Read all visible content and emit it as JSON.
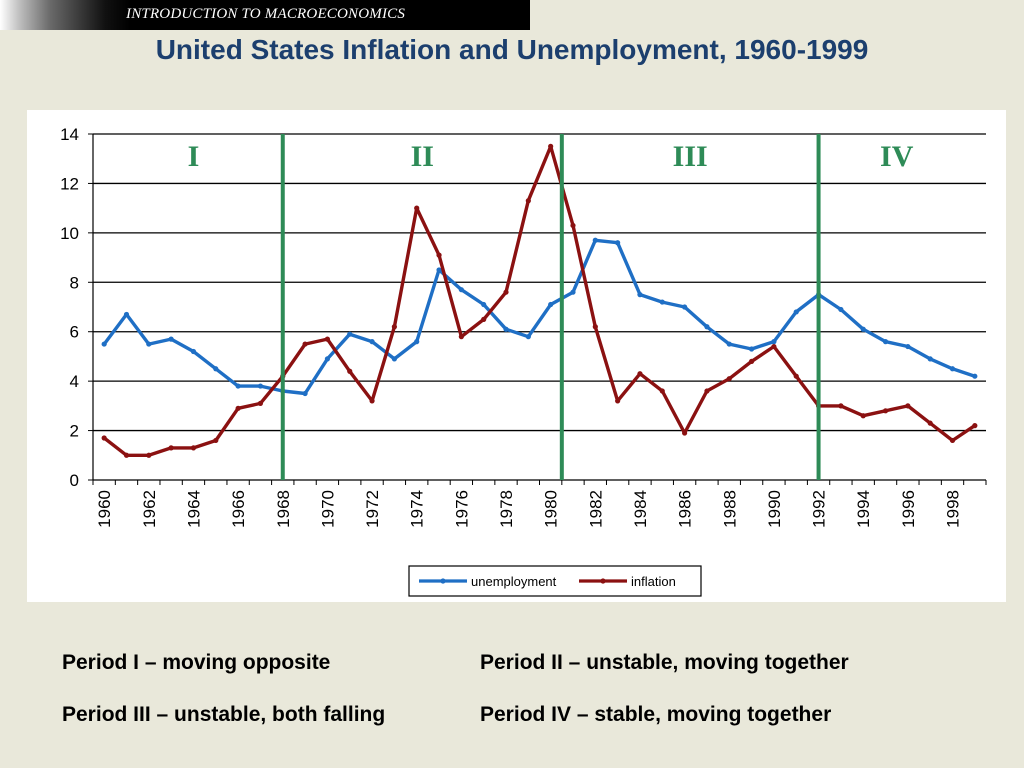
{
  "header": {
    "course_title": "INTRODUCTION TO MACROECONOMICS"
  },
  "slide_title": "United States Inflation and Unemployment, 1960-1999",
  "captions": [
    "Period I – moving opposite",
    "Period II – unstable, moving together",
    "Period III – unstable, both falling",
    "Period IV – stable, moving together"
  ],
  "chart_data": {
    "type": "line",
    "title": "",
    "xlabel": "",
    "ylabel": "",
    "x": [
      1960,
      1961,
      1962,
      1963,
      1964,
      1965,
      1966,
      1967,
      1968,
      1969,
      1970,
      1971,
      1972,
      1973,
      1974,
      1975,
      1976,
      1977,
      1978,
      1979,
      1980,
      1981,
      1982,
      1983,
      1984,
      1985,
      1986,
      1987,
      1988,
      1989,
      1990,
      1991,
      1992,
      1993,
      1994,
      1995,
      1996,
      1997,
      1998,
      1999
    ],
    "x_tick_labels": [
      "1960",
      "1962",
      "1964",
      "1966",
      "1968",
      "1970",
      "1972",
      "1974",
      "1976",
      "1978",
      "1980",
      "1982",
      "1984",
      "1986",
      "1988",
      "1990",
      "1992",
      "1994",
      "1996",
      "1998"
    ],
    "ylim": [
      0,
      14
    ],
    "y_ticks": [
      0,
      2,
      4,
      6,
      8,
      10,
      12,
      14
    ],
    "grid": "horizontal",
    "legend_position": "bottom",
    "series": [
      {
        "name": "unemployment",
        "color": "#1f6fc5",
        "values": [
          5.5,
          6.7,
          5.5,
          5.7,
          5.2,
          4.5,
          3.8,
          3.8,
          3.6,
          3.5,
          4.9,
          5.9,
          5.6,
          4.9,
          5.6,
          8.5,
          7.7,
          7.1,
          6.1,
          5.8,
          7.1,
          7.6,
          9.7,
          9.6,
          7.5,
          7.2,
          7.0,
          6.2,
          5.5,
          5.3,
          5.6,
          6.8,
          7.5,
          6.9,
          6.1,
          5.6,
          5.4,
          4.9,
          4.5,
          4.2
        ]
      },
      {
        "name": "inflation",
        "color": "#8b1111",
        "values": [
          1.7,
          1.0,
          1.0,
          1.3,
          1.3,
          1.6,
          2.9,
          3.1,
          4.2,
          5.5,
          5.7,
          4.4,
          3.2,
          6.2,
          11.0,
          9.1,
          5.8,
          6.5,
          7.6,
          11.3,
          13.5,
          10.3,
          6.2,
          3.2,
          4.3,
          3.6,
          1.9,
          3.6,
          4.1,
          4.8,
          5.4,
          4.2,
          3.0,
          3.0,
          2.6,
          2.8,
          3.0,
          2.3,
          1.6,
          2.2
        ]
      }
    ],
    "periods": [
      {
        "label": "I",
        "start": 1960,
        "end": 1968
      },
      {
        "label": "II",
        "start": 1968,
        "end": 1980.5
      },
      {
        "label": "III",
        "start": 1980.5,
        "end": 1992
      },
      {
        "label": "IV",
        "start": 1992,
        "end": 1999
      }
    ],
    "period_dividers": [
      1968,
      1980.5,
      1992
    ],
    "period_color": "#2e8b57"
  }
}
